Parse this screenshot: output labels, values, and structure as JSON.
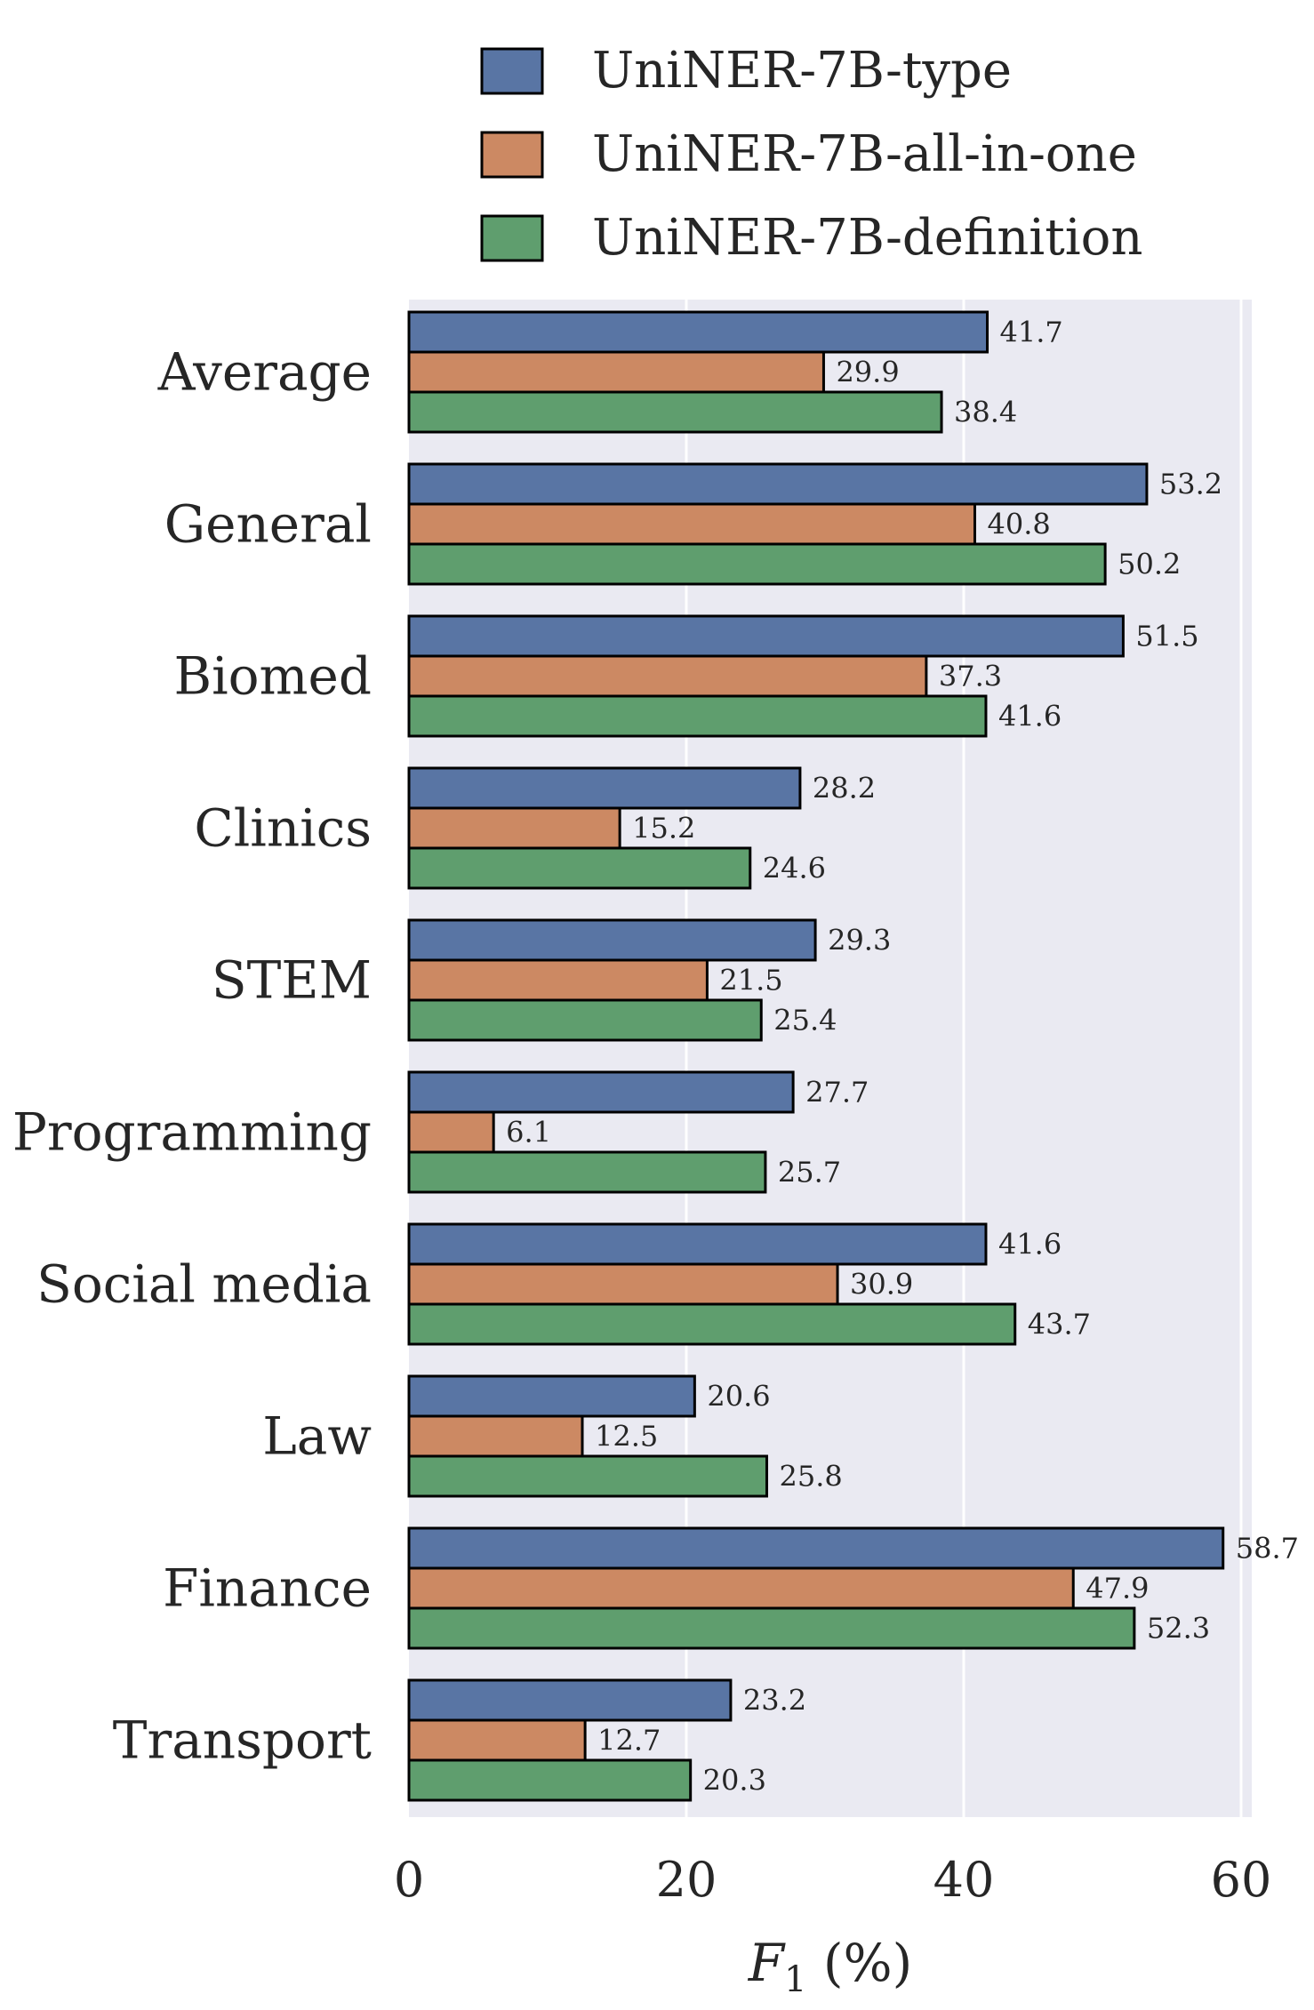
{
  "chart_data": {
    "type": "bar",
    "orientation": "horizontal",
    "categories": [
      "Average",
      "General",
      "Biomed",
      "Clinics",
      "STEM",
      "Programming",
      "Social media",
      "Law",
      "Finance",
      "Transport"
    ],
    "series": [
      {
        "name": "UniNER-7B-type",
        "color": "#5975a4",
        "values": [
          41.7,
          53.2,
          51.5,
          28.2,
          29.3,
          27.7,
          41.6,
          20.6,
          58.7,
          23.2
        ]
      },
      {
        "name": "UniNER-7B-all-in-one",
        "color": "#cc8963",
        "values": [
          29.9,
          40.8,
          37.3,
          15.2,
          21.5,
          6.1,
          30.9,
          12.5,
          47.9,
          12.7
        ]
      },
      {
        "name": "UniNER-7B-definition",
        "color": "#5f9e6e",
        "values": [
          38.4,
          50.2,
          41.6,
          24.6,
          25.4,
          25.7,
          43.7,
          25.8,
          52.3,
          20.3
        ]
      }
    ],
    "xlabel": "F1 (%)",
    "xlim": [
      0,
      61
    ],
    "xticks": [
      0,
      20,
      40,
      60
    ],
    "grid": true,
    "legend_position": "top",
    "background_color": "#eaeaf2"
  }
}
